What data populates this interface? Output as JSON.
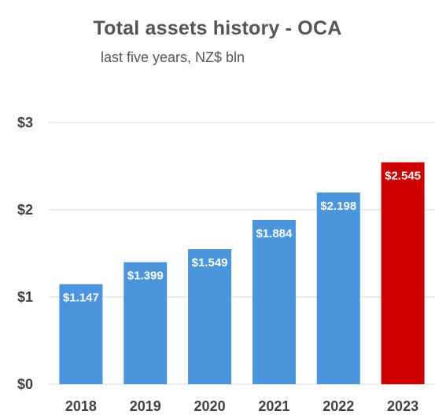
{
  "chart_data": {
    "type": "bar",
    "title": "Total assets history - OCA",
    "subtitle": "last five years, NZ$ bln",
    "categories": [
      "2018",
      "2019",
      "2020",
      "2021",
      "2022",
      "2023"
    ],
    "values": [
      1.147,
      1.399,
      1.549,
      1.884,
      2.198,
      2.545
    ],
    "data_labels": [
      "$1.147",
      "$1.399",
      "$1.549",
      "$1.884",
      "$2.198",
      "$2.545"
    ],
    "ylim": [
      0,
      3
    ],
    "yticks": [
      0,
      1,
      2,
      3
    ],
    "ytick_labels": [
      "$0",
      "$1",
      "$2",
      "$3"
    ],
    "grid": true,
    "legend": "none",
    "colors": {
      "bar": "#4A95DC",
      "highlight": "#CC0000",
      "gridline": "#D9D9D9",
      "text": "#404040"
    },
    "highlight_category": "2023"
  }
}
